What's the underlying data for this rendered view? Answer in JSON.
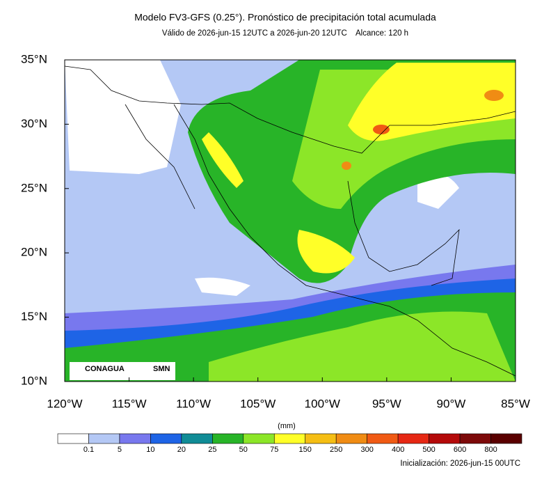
{
  "title": "Modelo FV3-GFS (0.25°). Pronóstico de precipitación total acumulada",
  "subtitle": "Válido de 2026-jun-15 12UTC a 2026-jun-20 12UTC    Alcance: 120 h",
  "map": {
    "lat_labels": [
      "35°N",
      "30°N",
      "25°N",
      "20°N",
      "15°N",
      "10°N"
    ],
    "lon_labels": [
      "120°W",
      "115°W",
      "110°W",
      "105°W",
      "100°W",
      "95°W",
      "90°W",
      "85°W"
    ]
  },
  "colorbar": {
    "unit": "(mm)",
    "labels": [
      "0.1",
      "5",
      "10",
      "20",
      "25",
      "50",
      "75",
      "150",
      "250",
      "300",
      "400",
      "500",
      "600",
      "800"
    ],
    "colors": [
      "#ffffff",
      "#b4c8f5",
      "#7878ee",
      "#1e64e6",
      "#108c96",
      "#28b428",
      "#8ce628",
      "#ffff28",
      "#f5be14",
      "#f08c14",
      "#f05a14",
      "#e62814",
      "#b40a0a",
      "#7d0a0a",
      "#5a0000"
    ]
  },
  "logos": {
    "left": "CONAGUA",
    "right": "SMN"
  },
  "footer": "Inicialización: 2026-jun-15 00UTC"
}
